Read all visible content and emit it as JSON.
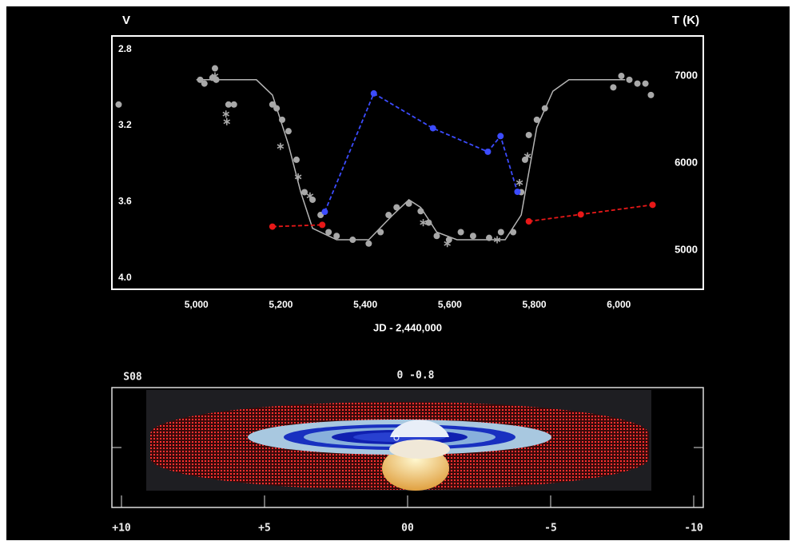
{
  "chart_data": [
    {
      "type": "scatter",
      "ylabel": "V",
      "y2label": "T (K)",
      "xlabel": "JD - 2,440,000",
      "xlim": [
        4800,
        6200
      ],
      "xticks": [
        {
          "value": 5000,
          "label": "5,000"
        },
        {
          "value": 5200,
          "label": "5,200"
        },
        {
          "value": 5400,
          "label": "5,400"
        },
        {
          "value": 5600,
          "label": "5,600"
        },
        {
          "value": 5800,
          "label": "5,800"
        },
        {
          "value": 6000,
          "label": "6,000"
        }
      ],
      "ylim": [
        4.06,
        2.73
      ],
      "yticks": [
        2.8,
        3.2,
        3.6,
        {
          "value": 4,
          "label": "4.0"
        }
      ],
      "y2lim": [
        4550,
        7460
      ],
      "y2ticks": [
        5000,
        6000,
        7000
      ],
      "grid": false,
      "series": [
        {
          "type": "line",
          "color": "#b4b4b4",
          "dash": false,
          "x": [
            5000,
            5142,
            5180,
            5218,
            5247,
            5275,
            5332,
            5408,
            5465,
            5503,
            5531,
            5569,
            5617,
            5731,
            5769,
            5806,
            5844,
            5882,
            6015
          ],
          "values": [
            2.96,
            2.96,
            3.04,
            3.3,
            3.55,
            3.74,
            3.8,
            3.8,
            3.67,
            3.59,
            3.63,
            3.76,
            3.8,
            3.8,
            3.67,
            3.21,
            3.02,
            2.96,
            2.96
          ]
        },
        {
          "type": "scatter",
          "marker": "o",
          "color": "#a8a8a8",
          "x": [
            4816,
            5009,
            5019,
            5038,
            5044,
            5047,
            5076,
            5089,
            5180,
            5190,
            5203,
            5218,
            5237,
            5256,
            5275,
            5294,
            5313,
            5332,
            5370,
            5408,
            5436,
            5455,
            5474,
            5503,
            5531,
            5550,
            5569,
            5598,
            5626,
            5655,
            5693,
            5721,
            5750,
            5769,
            5778,
            5787,
            5806,
            5825,
            5987,
            6006,
            6025,
            6044,
            6063,
            6076
          ],
          "values": [
            3.09,
            2.96,
            2.98,
            2.95,
            2.9,
            2.96,
            3.09,
            3.09,
            3.09,
            3.11,
            3.17,
            3.23,
            3.38,
            3.55,
            3.59,
            3.67,
            3.76,
            3.78,
            3.8,
            3.82,
            3.76,
            3.67,
            3.63,
            3.61,
            3.65,
            3.71,
            3.78,
            3.8,
            3.76,
            3.78,
            3.79,
            3.76,
            3.76,
            3.55,
            3.38,
            3.25,
            3.17,
            3.11,
            3.0,
            2.94,
            2.96,
            2.98,
            2.98,
            3.04
          ]
        },
        {
          "type": "scatter",
          "marker": "*",
          "color": "#a8a8a8",
          "x": [
            5044,
            5070,
            5072,
            5199,
            5241,
            5269,
            5537,
            5594,
            5712,
            5765,
            5784
          ],
          "values": [
            2.94,
            3.14,
            3.18,
            3.31,
            3.47,
            3.57,
            3.71,
            3.82,
            3.8,
            3.5,
            3.36
          ]
        },
        {
          "type": "line",
          "axis": "y2",
          "color": "#3c4cff",
          "dash": true,
          "marker": "o",
          "x": [
            5304,
            5420,
            5560,
            5690,
            5720,
            5760
          ],
          "values": [
            5440,
            6800,
            6400,
            6130,
            6310,
            5670
          ]
        },
        {
          "type": "line",
          "axis": "y2",
          "color": "#e81818",
          "dash": true,
          "marker": "o",
          "x": [
            5180,
            5298
          ],
          "values": [
            5270,
            5290
          ]
        },
        {
          "type": "line",
          "axis": "y2",
          "color": "#e81818",
          "dash": true,
          "marker": "o",
          "x": [
            5787,
            5910,
            6080
          ],
          "values": [
            5330,
            5410,
            5520
          ]
        }
      ]
    },
    {
      "type": "image",
      "annotations": [
        "S08",
        "0 -0.8"
      ],
      "xlim": [
        10,
        -10
      ],
      "xticks": [
        {
          "value": 10,
          "label": "+10"
        },
        {
          "value": 5,
          "label": "+5"
        },
        {
          "value": 0,
          "label": "00"
        },
        -5,
        -10
      ]
    }
  ]
}
